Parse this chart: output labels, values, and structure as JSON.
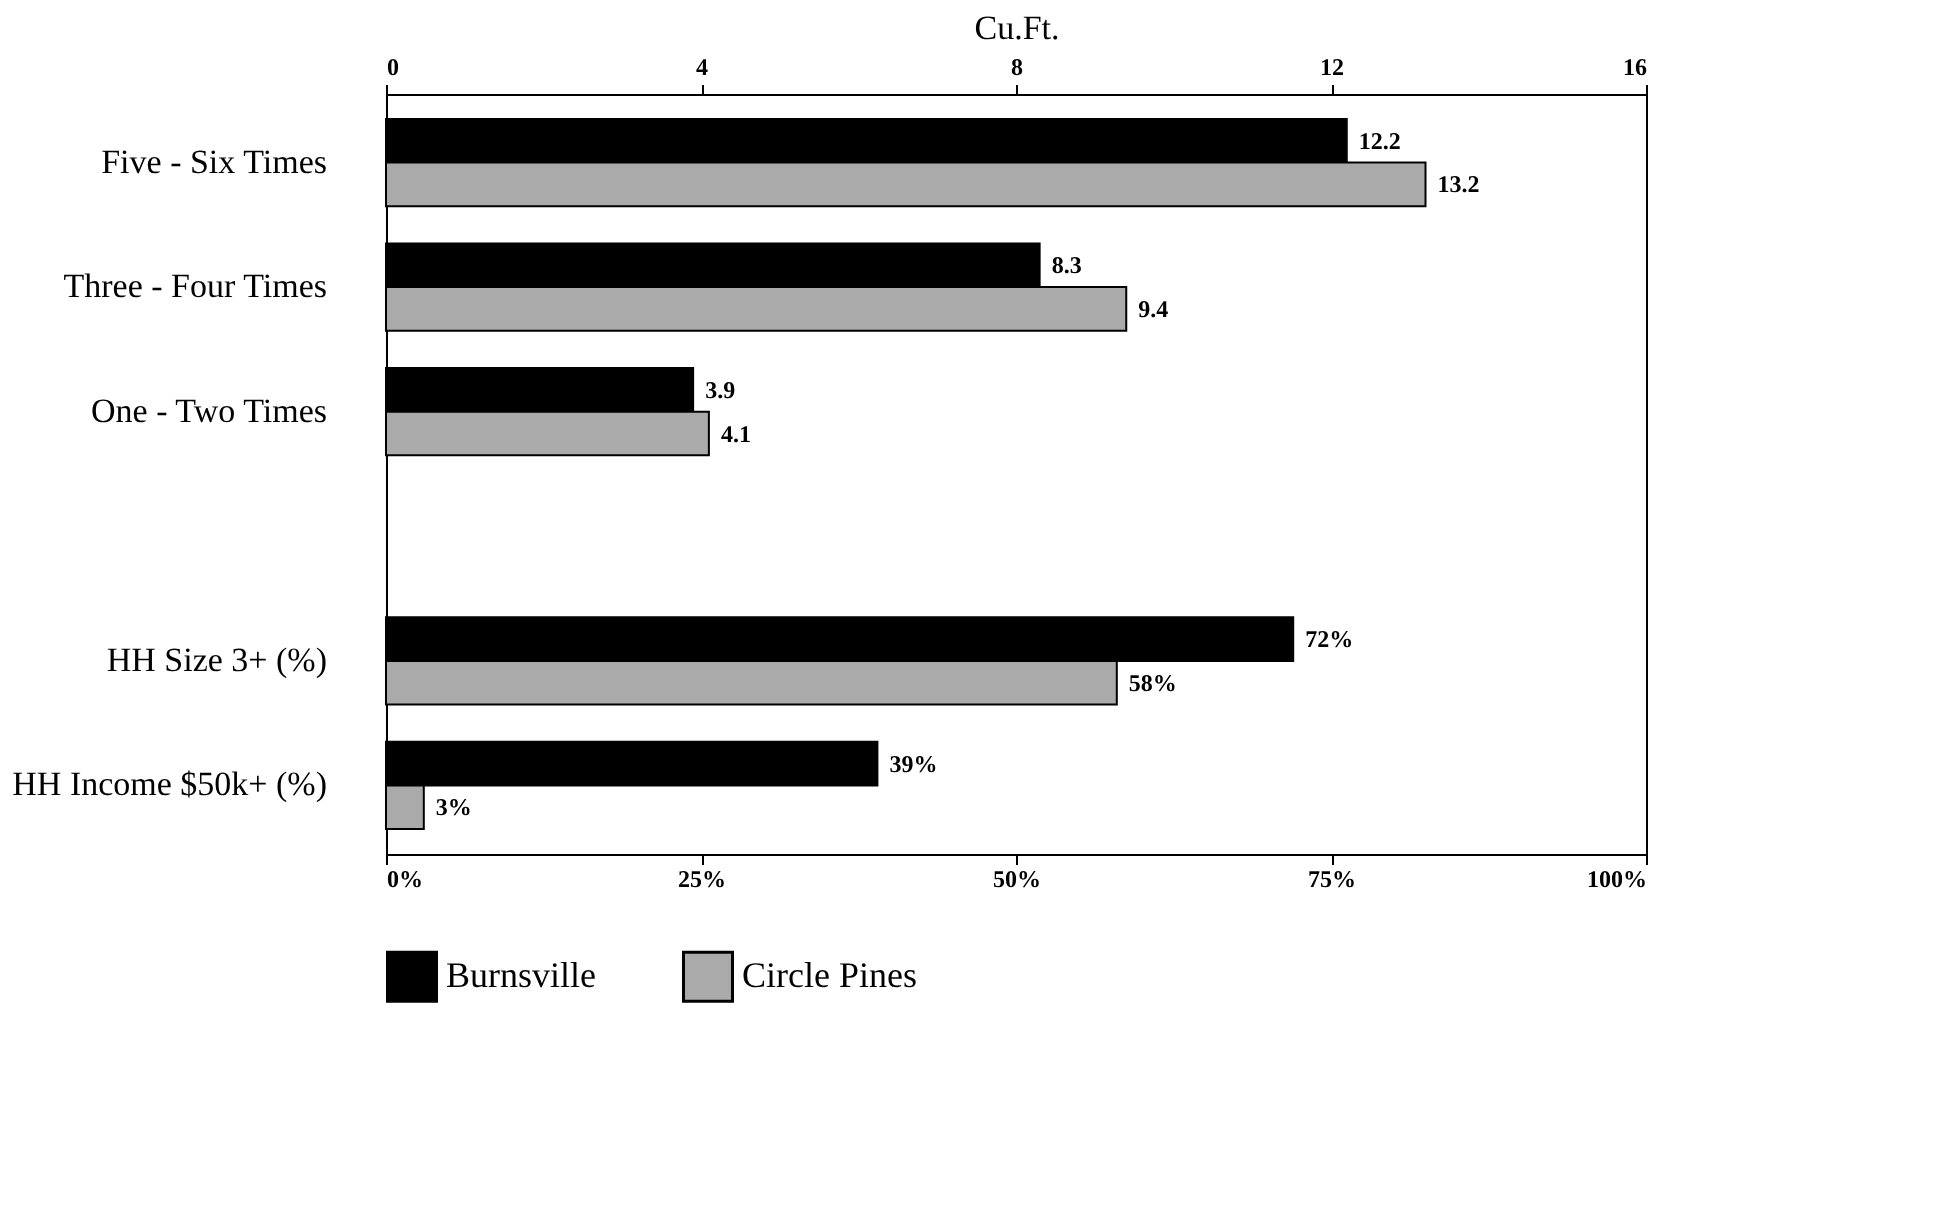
{
  "chart_data": {
    "type": "bar",
    "orientation": "horizontal",
    "x2label": "Cu.Ft.",
    "x2lim": [
      0,
      16
    ],
    "x2ticks": [
      0,
      4,
      8,
      12,
      16
    ],
    "xlim": [
      0,
      100
    ],
    "xticks": [
      {
        "value": 0,
        "label": "0%"
      },
      {
        "value": 25,
        "label": "25%"
      },
      {
        "value": 50,
        "label": "50%"
      },
      {
        "value": 75,
        "label": "75%"
      },
      {
        "value": 100,
        "label": "100%"
      }
    ],
    "categories": [
      "Five - Six Times",
      "Three - Four Times",
      "One - Two Times",
      null,
      "HH Size 3+ (%)",
      "HH Income $50k+ (%)"
    ],
    "series": [
      {
        "name": "Burnsville",
        "color": "#000000",
        "axis": "x2",
        "values": [
          12.2,
          8.3,
          3.9,
          null,
          null,
          null
        ],
        "value_labels": [
          "12.2",
          "8.3",
          "3.9",
          null,
          null,
          null
        ]
      },
      {
        "name": "Circle Pines",
        "color": "#aaaaaa",
        "axis": "x2",
        "values": [
          13.2,
          9.4,
          4.1,
          null,
          null,
          null
        ],
        "value_labels": [
          "13.2",
          "9.4",
          "4.1",
          null,
          null,
          null
        ]
      },
      {
        "color": "#000000",
        "values": [
          null,
          null,
          null,
          null,
          72,
          39
        ],
        "value_labels": [
          null,
          null,
          null,
          null,
          "72%",
          "39%"
        ]
      },
      {
        "color": "#aaaaaa",
        "values": [
          null,
          null,
          null,
          null,
          58,
          3
        ],
        "value_labels": [
          null,
          null,
          null,
          null,
          "58%",
          "3%"
        ]
      }
    ],
    "legend": "bottom",
    "grid": false
  }
}
